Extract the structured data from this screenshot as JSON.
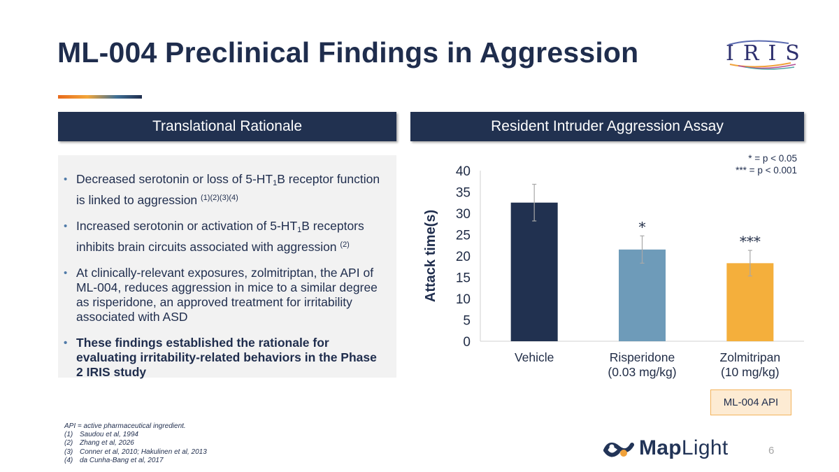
{
  "title": "ML-004 Preclinical Findings in Aggression",
  "logo": {
    "text": "IRIS"
  },
  "left_panel": {
    "header": "Translational Rationale",
    "bullets": [
      {
        "parts": [
          "Decreased serotonin or loss of 5-HT",
          "1",
          "B receptor function is linked to aggression ",
          "(1)(2)(3)(4)"
        ],
        "bold": false
      },
      {
        "parts": [
          "Increased serotonin or activation of 5-HT",
          "1",
          "B receptors inhibits brain circuits associated with aggression ",
          "(2)"
        ],
        "bold": false
      },
      {
        "text": "At clinically-relevant exposures, zolmitriptan, the API of ML-004, reduces aggression in mice to a similar degree as risperidone, an approved treatment for irritability associated with ASD",
        "bold": false
      },
      {
        "text": "These findings established the rationale for evaluating irritability-related behaviors in the Phase 2 IRIS study",
        "bold": true
      }
    ]
  },
  "right_panel": {
    "header": "Resident Intruder Aggression Assay",
    "significance_note": [
      "* = p < 0.05",
      "*** = p < 0.001"
    ],
    "api_label": "ML-004 API"
  },
  "chart_data": {
    "type": "bar",
    "title": "",
    "xlabel": "",
    "ylabel": "Attack time(s)",
    "ylim": [
      0,
      40
    ],
    "yticks": [
      0,
      5,
      10,
      15,
      20,
      25,
      30,
      35,
      40
    ],
    "grid": false,
    "categories": [
      [
        "Vehicle"
      ],
      [
        "Risperidone",
        "(0.03 mg/kg)"
      ],
      [
        "Zolmitripan",
        "(10 mg/kg)"
      ]
    ],
    "values": [
      32.5,
      21.5,
      18.3
    ],
    "error": [
      4.3,
      3.2,
      3.0
    ],
    "significance": [
      "",
      "*",
      "***"
    ],
    "colors": [
      "#213150",
      "#6e9bb9",
      "#f4af3c"
    ]
  },
  "footnotes": [
    {
      "num": "",
      "text": "API = active pharmaceutical ingredient."
    },
    {
      "num": "(1)",
      "text": "Saudou et al, 1994"
    },
    {
      "num": "(2)",
      "text": "Zhang et al, 2026"
    },
    {
      "num": "(3)",
      "text": "Conner et al, 2010; Hakulinen et al, 2013"
    },
    {
      "num": "(4)",
      "text": "da Cunha-Bang et al, 2017"
    }
  ],
  "brand": {
    "name_bold": "Map",
    "name_light": "Light"
  },
  "page_number": "6"
}
